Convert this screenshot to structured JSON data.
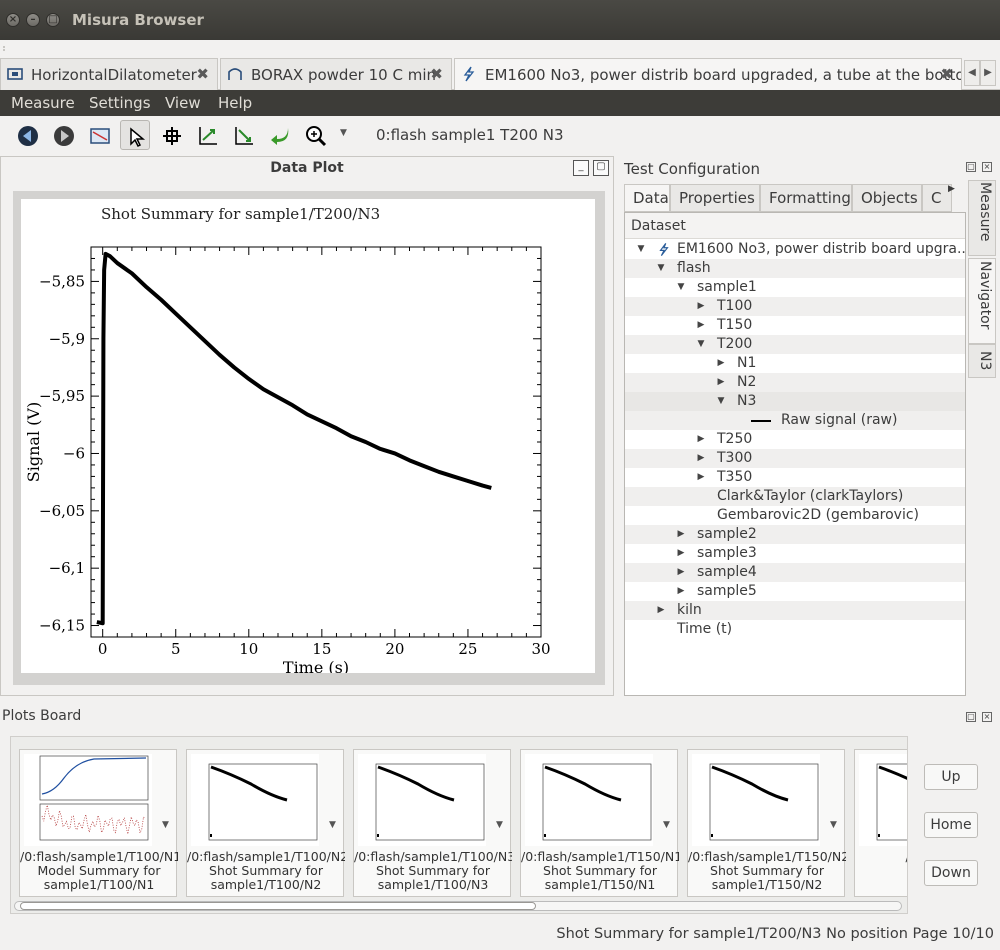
{
  "window": {
    "title": "Misura Browser"
  },
  "doc_tabs": [
    {
      "label": "HorizontalDilatometer"
    },
    {
      "label": "BORAX powder 10 C min"
    },
    {
      "label": "EM1600 No3, power distrib board upgraded, a tube at the bottom"
    }
  ],
  "menu": [
    "Measure",
    "Settings",
    "View",
    "Help"
  ],
  "toolbar": {
    "path": "0:flash  sample1  T200  N3"
  },
  "data_plot": {
    "panel_title": "Data Plot",
    "plot_title": "Shot Summary for sample1/T200/N3"
  },
  "chart_data": {
    "type": "line",
    "title": "Shot Summary for sample1/T200/N3",
    "xlabel": "Time (s)",
    "ylabel": "Signal (V)",
    "xlim": [
      -0.8,
      30
    ],
    "ylim": [
      -6.16,
      -5.82
    ],
    "x_ticks": [
      0,
      5,
      10,
      15,
      20,
      25,
      30
    ],
    "x_tick_labels": [
      "0",
      "5",
      "10",
      "15",
      "20",
      "25",
      "30"
    ],
    "y_ticks": [
      -5.85,
      -5.9,
      -5.95,
      -6.0,
      -6.05,
      -6.1,
      -6.15
    ],
    "y_tick_labels": [
      "−5,85",
      "−5,9",
      "−5,95",
      "−6",
      "−6,05",
      "−6,1",
      "−6,15"
    ],
    "grid": false,
    "series": [
      {
        "x": [
          -0.4,
          0.0,
          0.05,
          0.1,
          0.2,
          0.5,
          1,
          2,
          3,
          4,
          5,
          6,
          7,
          8,
          9,
          10,
          11,
          12,
          13,
          14,
          15,
          16,
          17,
          18,
          19,
          20,
          21,
          22,
          23,
          24,
          25,
          26,
          26.6
        ],
        "y": [
          -6.147,
          -6.148,
          -5.9,
          -5.84,
          -5.826,
          -5.828,
          -5.834,
          -5.843,
          -5.855,
          -5.866,
          -5.878,
          -5.89,
          -5.902,
          -5.914,
          -5.925,
          -5.935,
          -5.944,
          -5.951,
          -5.958,
          -5.966,
          -5.972,
          -5.978,
          -5.985,
          -5.99,
          -5.996,
          -6.0,
          -6.006,
          -6.011,
          -6.016,
          -6.02,
          -6.024,
          -6.028,
          -6.03
        ]
      }
    ]
  },
  "test_config": {
    "title": "Test Configuration",
    "tabs": [
      "Data",
      "Properties",
      "Formatting",
      "Objects",
      "C"
    ],
    "tree_header": "Dataset",
    "tree": [
      {
        "label": "EM1600 No3, power distrib board upgra...",
        "depth": 0,
        "arrow": "down",
        "icon": "flash-icon"
      },
      {
        "label": "flash",
        "depth": 1,
        "arrow": "down"
      },
      {
        "label": "sample1",
        "depth": 2,
        "arrow": "down"
      },
      {
        "label": "T100",
        "depth": 3,
        "arrow": "right"
      },
      {
        "label": "T150",
        "depth": 3,
        "arrow": "right"
      },
      {
        "label": "T200",
        "depth": 3,
        "arrow": "down"
      },
      {
        "label": "N1",
        "depth": 4,
        "arrow": "right"
      },
      {
        "label": "N2",
        "depth": 4,
        "arrow": "right"
      },
      {
        "label": "N3",
        "depth": 4,
        "arrow": "down",
        "selected": true
      },
      {
        "label": "Raw signal (raw)",
        "depth": 5,
        "arrow": "none",
        "line": true
      },
      {
        "label": "T250",
        "depth": 3,
        "arrow": "right"
      },
      {
        "label": "T300",
        "depth": 3,
        "arrow": "right"
      },
      {
        "label": "T350",
        "depth": 3,
        "arrow": "right"
      },
      {
        "label": "Clark&Taylor (clarkTaylors)",
        "depth": 3,
        "arrow": "none"
      },
      {
        "label": "Gembarovic2D (gembarovic)",
        "depth": 3,
        "arrow": "none"
      },
      {
        "label": "sample2",
        "depth": 2,
        "arrow": "right"
      },
      {
        "label": "sample3",
        "depth": 2,
        "arrow": "right"
      },
      {
        "label": "sample4",
        "depth": 2,
        "arrow": "right"
      },
      {
        "label": "sample5",
        "depth": 2,
        "arrow": "right"
      },
      {
        "label": "kiln",
        "depth": 1,
        "arrow": "right"
      },
      {
        "label": "Time (t)",
        "depth": 1,
        "arrow": "none"
      }
    ],
    "side_tabs": [
      "Measure",
      "Navigator",
      "N3"
    ]
  },
  "plots_board": {
    "title": "Plots Board",
    "thumbs": [
      {
        "path": "/0:flash/sample1/T100/N1",
        "line1": "Model Summary for",
        "line2": "sample1/T100/N1",
        "kind": "model"
      },
      {
        "path": "/0:flash/sample1/T100/N2",
        "line1": "Shot Summary for",
        "line2": "sample1/T100/N2",
        "kind": "shot"
      },
      {
        "path": "/0:flash/sample1/T100/N3",
        "line1": "Shot Summary for",
        "line2": "sample1/T100/N3",
        "kind": "shot"
      },
      {
        "path": "/0:flash/sample1/T150/N1",
        "line1": "Shot Summary for",
        "line2": "sample1/T150/N1",
        "kind": "shot"
      },
      {
        "path": "/0:flash/sample1/T150/N2",
        "line1": "Shot Summary for",
        "line2": "sample1/T150/N2",
        "kind": "shot"
      },
      {
        "path": "/0:flash/s",
        "line1": "Shot",
        "line2": "samp",
        "kind": "shot"
      }
    ],
    "buttons": {
      "up": "Up",
      "home": "Home",
      "down": "Down"
    }
  },
  "status": {
    "text": "Shot Summary for sample1/T200/N3  No position  Page 10/10"
  }
}
